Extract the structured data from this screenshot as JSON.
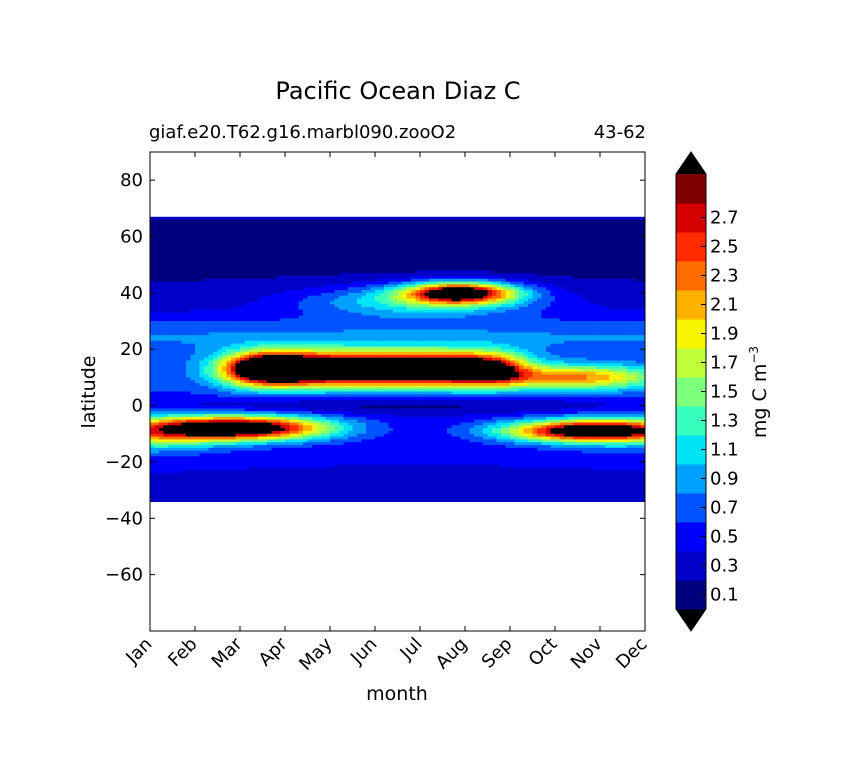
{
  "chart_data": {
    "type": "heatmap",
    "subtype": "filled-contour",
    "title": "Pacific Ocean Diaz C",
    "subtitle_left": "giaf.e20.T62.g16.marbl090.zooO2",
    "subtitle_right": "43-62",
    "xlabel": "month",
    "ylabel": "latitude",
    "x_categories": [
      "Jan",
      "Feb",
      "Mar",
      "Apr",
      "May",
      "Jun",
      "Jul",
      "Aug",
      "Sep",
      "Oct",
      "Nov",
      "Dec"
    ],
    "xlim": [
      0,
      11
    ],
    "ylim": [
      -80,
      90
    ],
    "yticks": [
      80,
      60,
      40,
      20,
      0,
      -20,
      -40,
      -60
    ],
    "data_lat_range": [
      -34,
      67
    ],
    "colorbar": {
      "label": "mg C m",
      "label_exponent": "−3",
      "extend": "both",
      "levels": [
        0,
        0.2,
        0.4,
        0.6,
        0.8,
        1.0,
        1.2,
        1.4,
        1.6,
        1.8,
        2.0,
        2.2,
        2.4,
        2.6,
        2.8
      ],
      "tick_labels": [
        "0.1",
        "0.3",
        "0.5",
        "0.7",
        "0.9",
        "1.1",
        "1.3",
        "1.5",
        "1.7",
        "1.9",
        "2.1",
        "2.3",
        "2.5",
        "2.7"
      ],
      "colors": [
        "#00007f",
        "#0000c8",
        "#0000ff",
        "#0054ff",
        "#00a0ff",
        "#00e4f8",
        "#39ffbe",
        "#7cff7a",
        "#beff39",
        "#f8f500",
        "#ffb200",
        "#ff6c00",
        "#ff2b00",
        "#d40000",
        "#7f0000"
      ],
      "under_color": "#000000",
      "over_color": "#000000"
    },
    "features": [
      {
        "name": "north-equatorial-max",
        "lat_center": 13,
        "month_start": 2.2,
        "month_end": 8.0,
        "peak": 3.2
      },
      {
        "name": "south-equatorial-max-early",
        "lat_center": -8,
        "month_start": 0,
        "month_end": 3.5,
        "peak": 3.0
      },
      {
        "name": "south-equatorial-max-late",
        "lat_center": -9,
        "month_start": 8.5,
        "month_end": 11,
        "peak": 2.6
      },
      {
        "name": "mid-latitude-summer-max",
        "lat_center": 40,
        "month_start": 5.0,
        "month_end": 9.0,
        "peak": 3.0
      }
    ]
  }
}
